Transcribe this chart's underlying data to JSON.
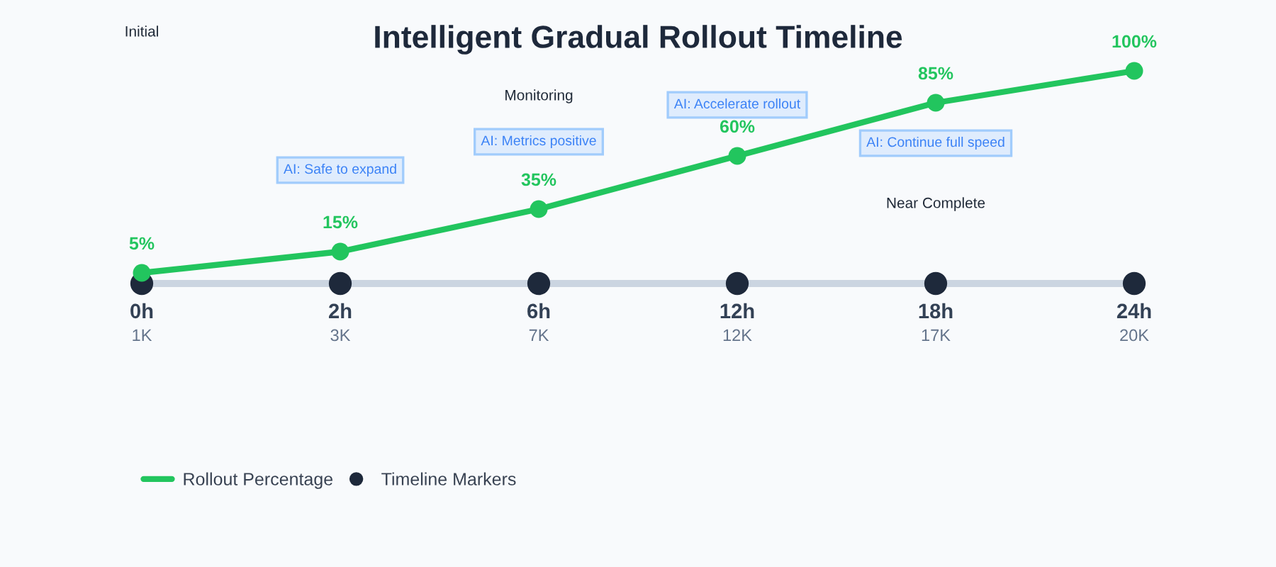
{
  "chart_data": {
    "type": "line",
    "title": "Intelligent Gradual Rollout Timeline",
    "categories": [
      "0h",
      "2h",
      "6h",
      "12h",
      "18h",
      "24h"
    ],
    "series": [
      {
        "name": "Rollout Percentage",
        "color": "#22c55e",
        "values": [
          5,
          15,
          35,
          60,
          85,
          100
        ],
        "value_labels": [
          "5%",
          "15%",
          "35%",
          "60%",
          "85%",
          "100%"
        ]
      },
      {
        "name": "Timeline Markers",
        "type": "scatter",
        "color": "#1e293b",
        "values": [
          0,
          0,
          0,
          0,
          0,
          0
        ]
      }
    ],
    "tick_labels": "x",
    "marker": "circle",
    "line_style": "solid",
    "legend": "bottom left",
    "annotations": [
      "Initial",
      "Monitoring",
      "Near Complete",
      "AI: Safe to expand",
      "AI: Metrics positive",
      "AI: Accelerate rollout",
      "AI: Continue full speed",
      "1K",
      "3K",
      "7K",
      "12K",
      "17K",
      "20K"
    ]
  }
}
